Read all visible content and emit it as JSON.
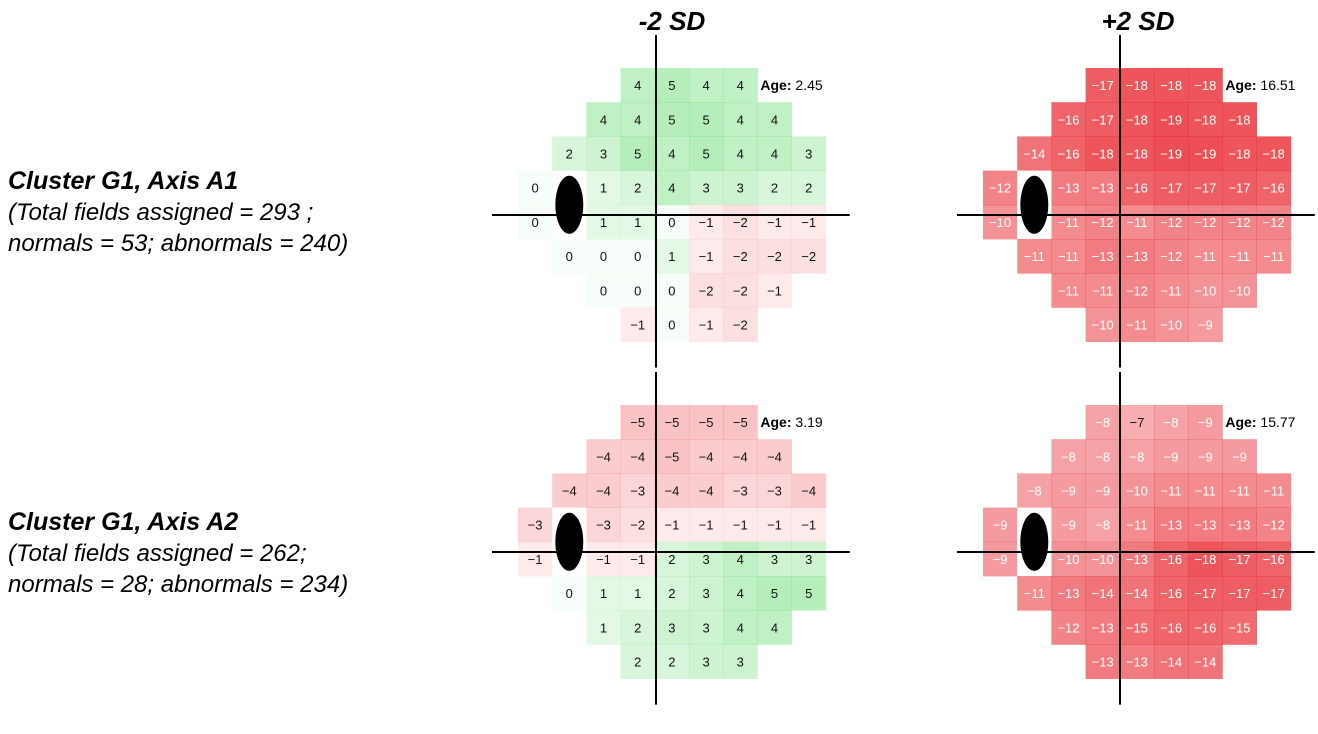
{
  "columns": [
    {
      "title": "-2 SD"
    },
    {
      "title": "+2 SD"
    }
  ],
  "rows": [
    {
      "title": "Cluster G1, Axis A1",
      "desc_line1": "(Total fields assigned = 293 ;",
      "desc_line2": "normals = 53; abnormals = 240)"
    },
    {
      "title": "Cluster G1, Axis A2",
      "desc_line1": "(Total fields assigned = 262;",
      "desc_line2": "normals = 28; abnormals = 234)"
    }
  ],
  "age_label": "Age:",
  "colors": {
    "positive": "#3cd24a",
    "negative": "#e8222a",
    "axis": "#000000",
    "blind_spot": "#000000"
  },
  "chart_data": [
    {
      "type": "heatmap",
      "row": "Cluster G1, Axis A1",
      "column": "-2 SD",
      "age": "2.45",
      "grid_rows": [
        [
          4,
          5,
          4,
          4
        ],
        [
          4,
          4,
          5,
          5,
          4,
          4
        ],
        [
          2,
          3,
          5,
          4,
          5,
          4,
          4,
          3
        ],
        [
          0,
          null,
          1,
          2,
          4,
          3,
          3,
          2,
          2
        ],
        [
          0,
          null,
          1,
          1,
          0,
          -1,
          -2,
          -1,
          -1
        ],
        [
          0,
          0,
          0,
          1,
          -1,
          -2,
          -2,
          -2
        ],
        [
          0,
          0,
          0,
          -2,
          -2,
          -1
        ],
        [
          -1,
          0,
          -1,
          -2
        ]
      ]
    },
    {
      "type": "heatmap",
      "row": "Cluster G1, Axis A1",
      "column": "+2 SD",
      "age": "16.51",
      "grid_rows": [
        [
          -17,
          -18,
          -18,
          -18
        ],
        [
          -16,
          -17,
          -18,
          -19,
          -18,
          -18
        ],
        [
          -14,
          -16,
          -18,
          -18,
          -19,
          -19,
          -18,
          -18
        ],
        [
          -12,
          null,
          -13,
          -13,
          -16,
          -17,
          -17,
          -17,
          -16
        ],
        [
          -10,
          null,
          -11,
          -12,
          -11,
          -12,
          -12,
          -12,
          -12
        ],
        [
          -11,
          -11,
          -13,
          -13,
          -12,
          -11,
          -11,
          -11
        ],
        [
          -11,
          -11,
          -12,
          -11,
          -10,
          -10
        ],
        [
          -10,
          -11,
          -10,
          -9
        ]
      ]
    },
    {
      "type": "heatmap",
      "row": "Cluster G1, Axis A2",
      "column": "-2 SD",
      "age": "3.19",
      "grid_rows": [
        [
          -5,
          -5,
          -5,
          -5
        ],
        [
          -4,
          -4,
          -5,
          -4,
          -4,
          -4
        ],
        [
          -4,
          -4,
          -3,
          -4,
          -4,
          -3,
          -3,
          -4
        ],
        [
          -3,
          null,
          -3,
          -2,
          -1,
          -1,
          -1,
          -1,
          -1
        ],
        [
          -1,
          null,
          -1,
          -1,
          2,
          3,
          4,
          3,
          3
        ],
        [
          0,
          1,
          1,
          2,
          3,
          4,
          5,
          5
        ],
        [
          1,
          2,
          3,
          3,
          4,
          4
        ],
        [
          2,
          2,
          3,
          3
        ]
      ]
    },
    {
      "type": "heatmap",
      "row": "Cluster G1, Axis A2",
      "column": "+2 SD",
      "age": "15.77",
      "grid_rows": [
        [
          -8,
          -7,
          -8,
          -9
        ],
        [
          -8,
          -8,
          -8,
          -9,
          -9,
          -9
        ],
        [
          -8,
          -9,
          -9,
          -10,
          -11,
          -11,
          -11,
          -11
        ],
        [
          -9,
          null,
          -9,
          -8,
          -11,
          -13,
          -13,
          -13,
          -12
        ],
        [
          -9,
          null,
          -10,
          -10,
          -13,
          -16,
          -18,
          -17,
          -16
        ],
        [
          -11,
          -13,
          -14,
          -14,
          -16,
          -17,
          -17,
          -17
        ],
        [
          -12,
          -13,
          -15,
          -16,
          -16,
          -15
        ],
        [
          -13,
          -13,
          -14,
          -14
        ]
      ]
    }
  ]
}
